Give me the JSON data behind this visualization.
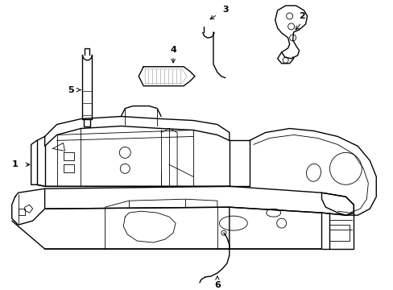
{
  "bg_color": "#ffffff",
  "line_color": "#000000",
  "gray_color": "#aaaaaa",
  "fig_width": 4.89,
  "fig_height": 3.6,
  "dpi": 100,
  "lw": 1.0,
  "tlw": 0.6
}
